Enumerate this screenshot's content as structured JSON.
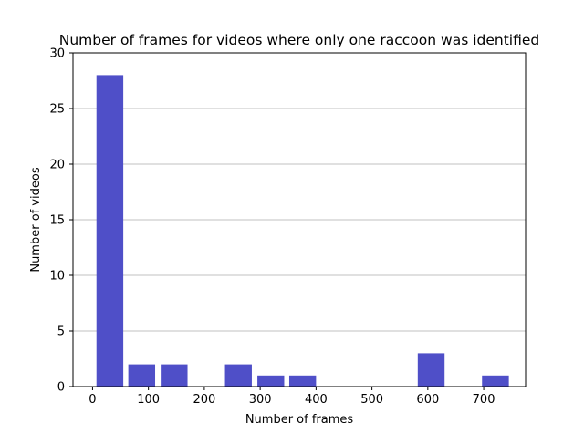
{
  "chart_data": {
    "type": "bar",
    "title": "Number of frames for videos where only one raccoon was identified",
    "xlabel": "Number of frames",
    "ylabel": "Number of videos",
    "xlim": [
      -35,
      775
    ],
    "ylim": [
      0,
      30
    ],
    "xticks": [
      0,
      100,
      200,
      300,
      400,
      500,
      600,
      700
    ],
    "yticks": [
      0,
      5,
      10,
      15,
      20,
      25,
      30
    ],
    "grid": "y",
    "bar_color": "#4f4fc8",
    "bins": [
      {
        "x0": 7,
        "x1": 55,
        "value": 28
      },
      {
        "x0": 64,
        "x1": 112,
        "value": 2
      },
      {
        "x0": 122,
        "x1": 170,
        "value": 2
      },
      {
        "x0": 180,
        "x1": 228,
        "value": 0
      },
      {
        "x0": 237,
        "x1": 285,
        "value": 2
      },
      {
        "x0": 295,
        "x1": 343,
        "value": 1
      },
      {
        "x0": 352,
        "x1": 400,
        "value": 1
      },
      {
        "x0": 410,
        "x1": 458,
        "value": 0
      },
      {
        "x0": 467,
        "x1": 515,
        "value": 0
      },
      {
        "x0": 525,
        "x1": 573,
        "value": 0
      },
      {
        "x0": 582,
        "x1": 630,
        "value": 3
      },
      {
        "x0": 640,
        "x1": 688,
        "value": 0
      },
      {
        "x0": 697,
        "x1": 745,
        "value": 1
      }
    ]
  }
}
